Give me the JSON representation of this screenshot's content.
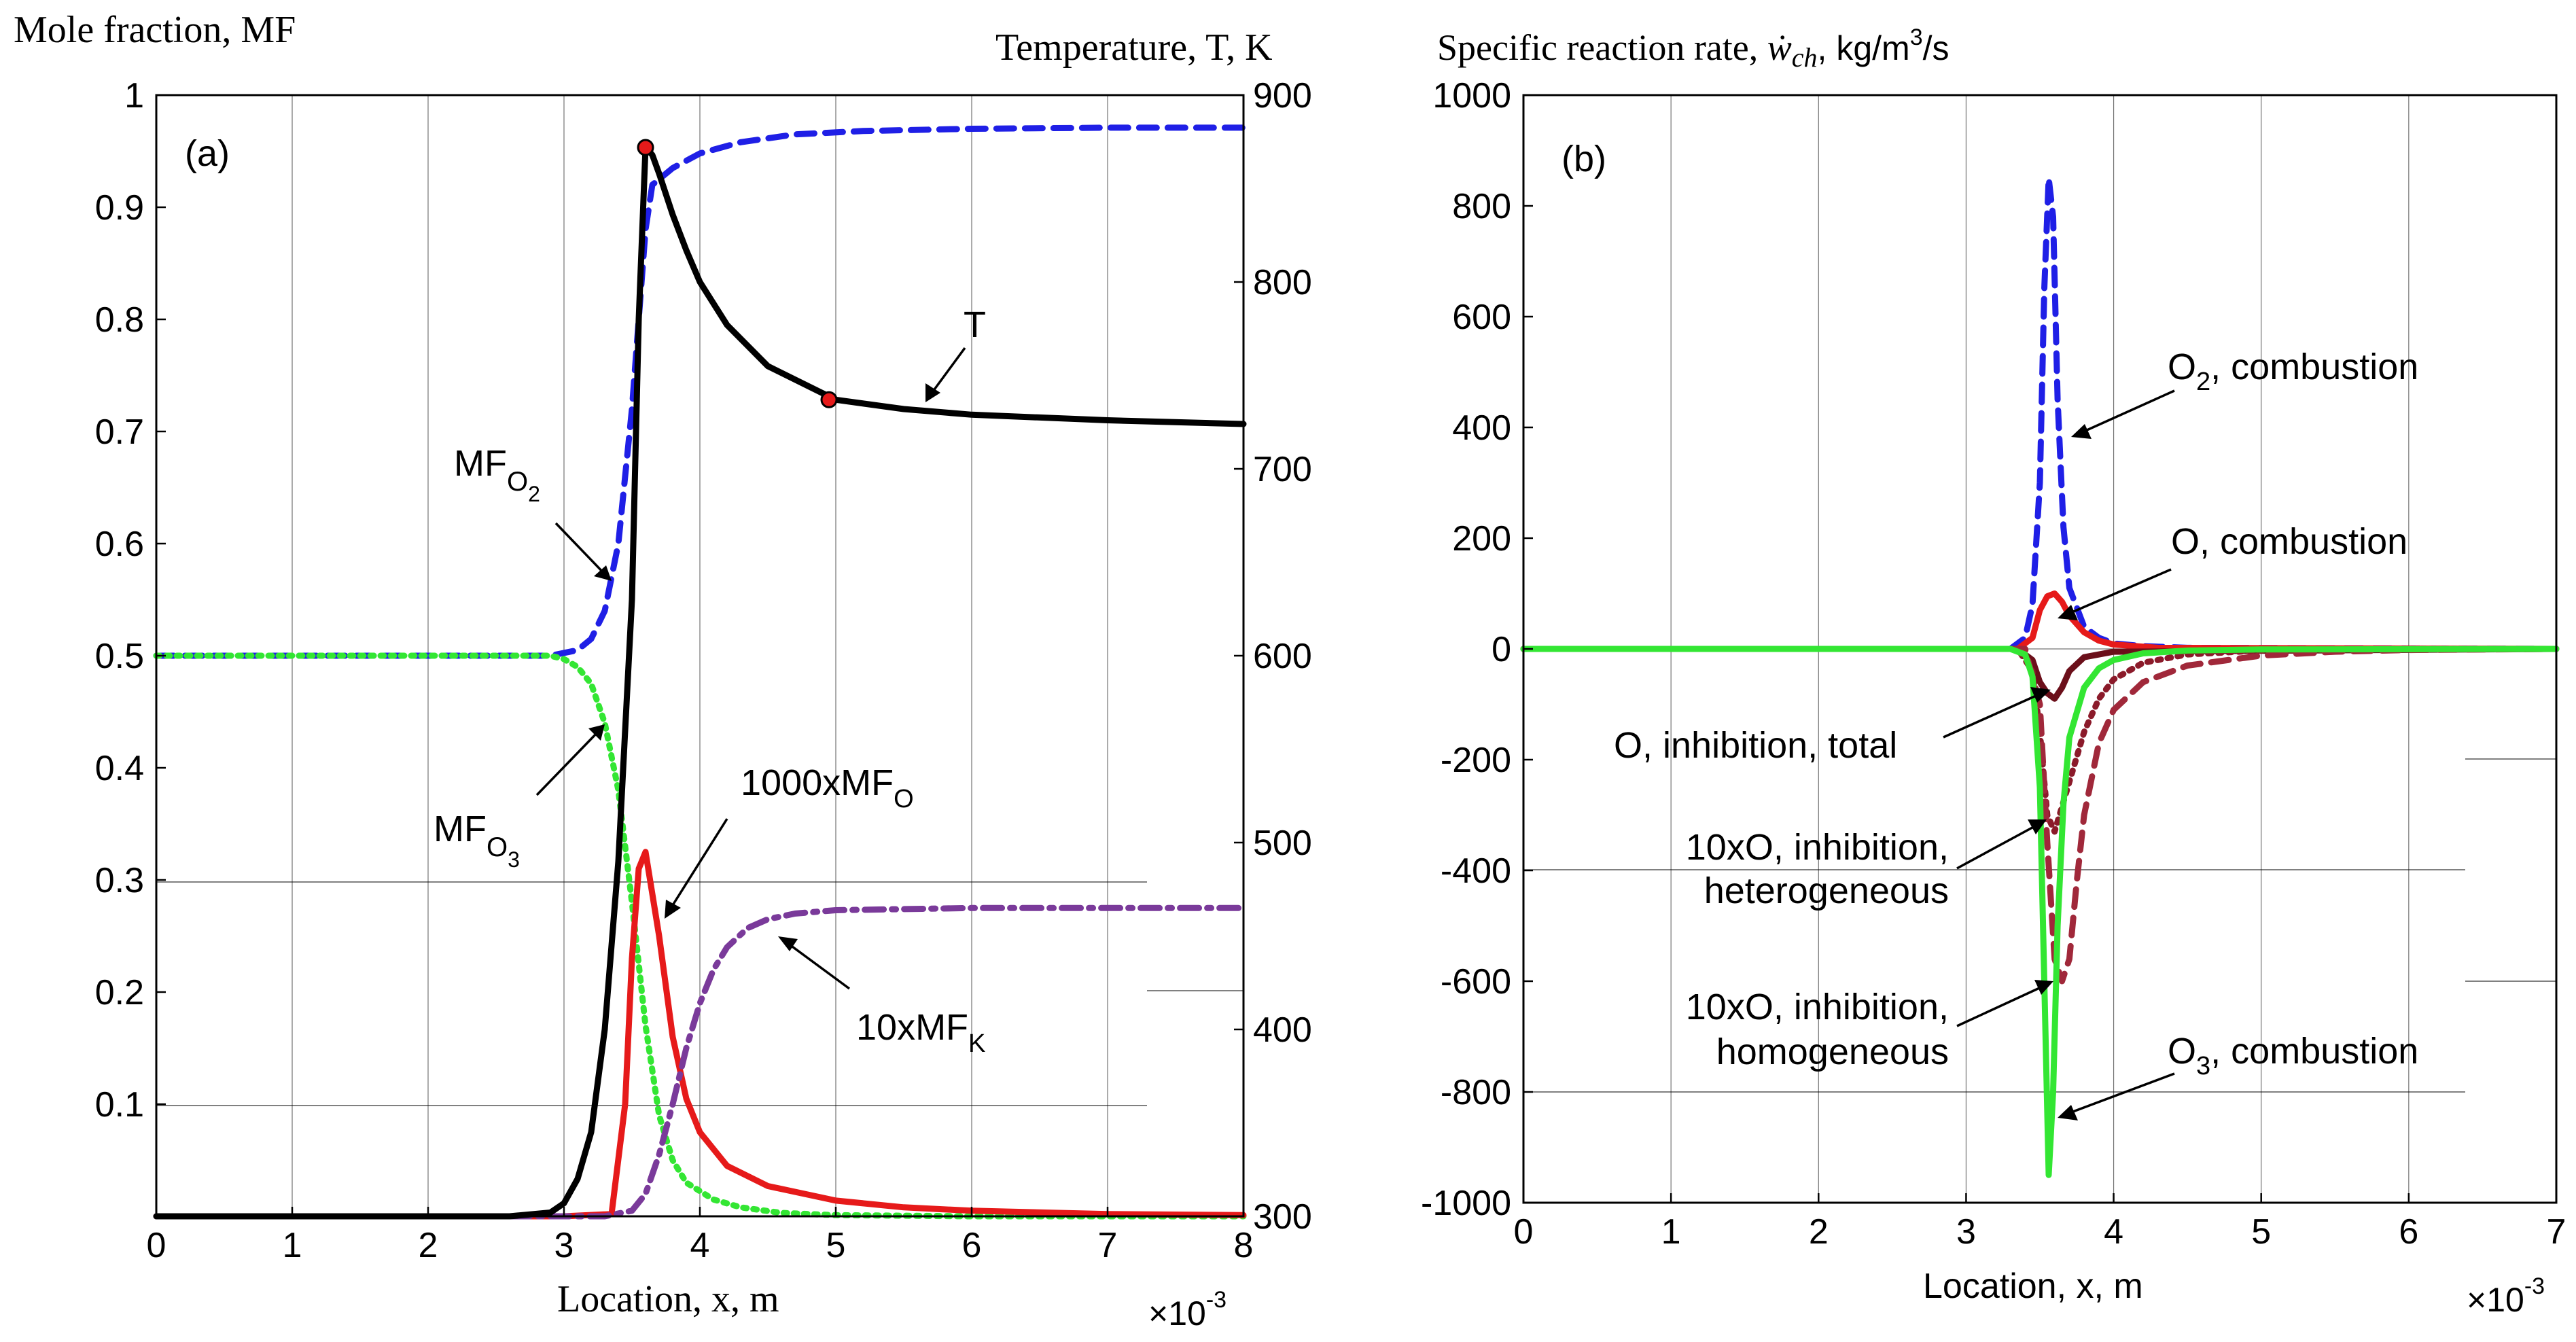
{
  "chart_data": [
    {
      "type": "line",
      "panel_label": "(a)",
      "ylabel_left": "Mole fraction, MF",
      "ylabel_right": "Temperature, T, K",
      "xlabel": "Location, x, m",
      "x_multiplier": "×10",
      "x_exponent": "-3",
      "xlim": [
        0,
        8
      ],
      "ylim_left": [
        0,
        1
      ],
      "ylim_right": [
        300,
        900
      ],
      "x_ticks": [
        0,
        1,
        2,
        3,
        4,
        5,
        6,
        7,
        8
      ],
      "x_tick_labels": [
        "0",
        "1",
        "2",
        "3",
        "4",
        "5",
        "6",
        "7",
        "8"
      ],
      "y_left_ticks": [
        0.1,
        0.2,
        0.3,
        0.4,
        0.5,
        0.6,
        0.7,
        0.8,
        0.9,
        1
      ],
      "y_left_tick_labels": [
        "0.1",
        "0.2",
        "0.3",
        "0.4",
        "0.5",
        "0.6",
        "0.7",
        "0.8",
        "0.9",
        "1"
      ],
      "y_right_ticks": [
        300,
        400,
        500,
        600,
        700,
        800,
        900
      ],
      "y_right_tick_labels": [
        "300",
        "400",
        "500",
        "600",
        "700",
        "800",
        "900"
      ],
      "grid": "vertical",
      "series": [
        {
          "name": "MF_O2",
          "axis": "left",
          "color": "#1f1fe6",
          "style": "dashed",
          "x": [
            0,
            2.5,
            2.9,
            3.1,
            3.2,
            3.3,
            3.4,
            3.5,
            3.6,
            3.65,
            3.7,
            3.8,
            4.0,
            4.3,
            4.7,
            5.2,
            6.0,
            7.0,
            8.0
          ],
          "y": [
            0.5,
            0.5,
            0.5,
            0.505,
            0.515,
            0.54,
            0.6,
            0.72,
            0.88,
            0.92,
            0.925,
            0.935,
            0.948,
            0.958,
            0.965,
            0.968,
            0.97,
            0.971,
            0.971
          ]
        },
        {
          "name": "MF_O3",
          "axis": "left",
          "color": "#33e633",
          "style": "dotted",
          "x": [
            0,
            2.5,
            2.9,
            3.0,
            3.1,
            3.2,
            3.3,
            3.4,
            3.5,
            3.6,
            3.7,
            3.8,
            3.9,
            4.1,
            4.3,
            4.6,
            5.0,
            6.0,
            8.0
          ],
          "y": [
            0.5,
            0.5,
            0.5,
            0.497,
            0.49,
            0.475,
            0.44,
            0.38,
            0.28,
            0.17,
            0.09,
            0.05,
            0.03,
            0.015,
            0.008,
            0.003,
            0.001,
            0.0,
            0.0
          ]
        },
        {
          "name": "1000xMF_O",
          "axis": "left",
          "color": "#e61a1a",
          "style": "solid",
          "x": [
            0,
            3.0,
            3.35,
            3.45,
            3.5,
            3.55,
            3.6,
            3.7,
            3.8,
            3.9,
            4.0,
            4.2,
            4.5,
            5.0,
            5.5,
            6.0,
            7.0,
            8.0
          ],
          "y": [
            0.0,
            0.0,
            0.002,
            0.1,
            0.23,
            0.31,
            0.325,
            0.25,
            0.16,
            0.105,
            0.075,
            0.045,
            0.027,
            0.014,
            0.008,
            0.005,
            0.002,
            0.001
          ]
        },
        {
          "name": "10xMF_K",
          "axis": "left",
          "color": "#7a3a9a",
          "style": "dashdot",
          "x": [
            0,
            3.3,
            3.5,
            3.6,
            3.7,
            3.8,
            3.9,
            4.0,
            4.1,
            4.2,
            4.35,
            4.5,
            4.7,
            5.0,
            5.5,
            6.0,
            7.0,
            8.0
          ],
          "y": [
            0.0,
            0.0,
            0.005,
            0.02,
            0.055,
            0.1,
            0.15,
            0.19,
            0.22,
            0.24,
            0.257,
            0.265,
            0.27,
            0.273,
            0.274,
            0.275,
            0.275,
            0.275
          ]
        },
        {
          "name": "T",
          "axis": "right",
          "color": "#000000",
          "style": "solid",
          "x": [
            0,
            2.6,
            2.9,
            3.0,
            3.1,
            3.2,
            3.3,
            3.4,
            3.5,
            3.55,
            3.6,
            3.65,
            3.7,
            3.8,
            3.9,
            4.0,
            4.2,
            4.5,
            5.0,
            5.5,
            6.0,
            7.0,
            8.0
          ],
          "y": [
            300,
            300,
            302,
            307,
            320,
            345,
            400,
            490,
            630,
            780,
            872,
            868,
            858,
            836,
            817,
            800,
            777,
            755,
            737,
            732,
            729,
            726,
            724
          ]
        }
      ],
      "markers": [
        {
          "series": "T",
          "x": 3.6,
          "y": 872
        },
        {
          "series": "T",
          "x": 4.95,
          "y": 737
        }
      ],
      "annotations": [
        "T",
        "MF",
        "O",
        "2",
        "MF",
        "O",
        "3",
        "1000xMF",
        "O",
        "10xMF",
        "K"
      ]
    },
    {
      "type": "line",
      "panel_label": "(b)",
      "title_prefix": "Specific reaction rate, ",
      "title_symbol": "ẇ",
      "title_sub": "ch",
      "title_unit": ", kg/m",
      "title_unit_sup": "3",
      "title_unit_end": "/s",
      "xlabel": "Location, x, m",
      "x_multiplier": "×10",
      "x_exponent": "-3",
      "xlim": [
        0,
        7
      ],
      "ylim": [
        -1000,
        1000
      ],
      "x_ticks": [
        0,
        1,
        2,
        3,
        4,
        5,
        6,
        7
      ],
      "x_tick_labels": [
        "0",
        "1",
        "2",
        "3",
        "4",
        "5",
        "6",
        "7"
      ],
      "y_ticks": [
        -1000,
        -800,
        -600,
        -400,
        -200,
        0,
        200,
        400,
        600,
        800,
        1000
      ],
      "y_tick_labels": [
        "-1000",
        "-800",
        "-600",
        "-400",
        "-200",
        "0",
        "200",
        "400",
        "600",
        "800",
        "1000"
      ],
      "grid": "vertical",
      "series": [
        {
          "name": "O2, combustion",
          "color": "#1f1fe6",
          "style": "dashed",
          "x": [
            0,
            3.3,
            3.4,
            3.45,
            3.5,
            3.53,
            3.56,
            3.59,
            3.62,
            3.66,
            3.7,
            3.8,
            3.9,
            4.0,
            4.2,
            4.5,
            7.0
          ],
          "y": [
            0,
            0,
            20,
            80,
            300,
            650,
            850,
            780,
            450,
            220,
            110,
            40,
            20,
            10,
            5,
            2,
            0
          ]
        },
        {
          "name": "O, combustion",
          "color": "#e61a1a",
          "style": "solid",
          "x": [
            0,
            3.35,
            3.45,
            3.5,
            3.55,
            3.6,
            3.65,
            3.7,
            3.8,
            3.9,
            4.0,
            4.3,
            7.0
          ],
          "y": [
            0,
            0,
            20,
            70,
            95,
            100,
            85,
            60,
            30,
            15,
            8,
            2,
            0
          ]
        },
        {
          "name": "O, inhibition, total",
          "color": "#6b0f1a",
          "style": "solid",
          "x": [
            0,
            3.35,
            3.45,
            3.5,
            3.55,
            3.6,
            3.65,
            3.7,
            3.8,
            4.0,
            7.0
          ],
          "y": [
            0,
            0,
            -20,
            -60,
            -80,
            -90,
            -70,
            -40,
            -15,
            -5,
            0
          ]
        },
        {
          "name": "10xO, inhibition, heterogeneous",
          "color": "#8b1a2a",
          "style": "dotted",
          "x": [
            0,
            3.35,
            3.45,
            3.5,
            3.55,
            3.6,
            3.7,
            3.8,
            3.9,
            4.0,
            4.2,
            4.5,
            5.0,
            6.0,
            7.0
          ],
          "y": [
            0,
            0,
            -40,
            -150,
            -300,
            -330,
            -240,
            -150,
            -90,
            -55,
            -25,
            -10,
            -3,
            0,
            0
          ]
        },
        {
          "name": "10xO, inhibition, homogeneous",
          "color": "#a0283a",
          "style": "dashed",
          "x": [
            0,
            3.4,
            3.5,
            3.55,
            3.6,
            3.65,
            3.7,
            3.75,
            3.8,
            3.9,
            4.0,
            4.2,
            4.5,
            5.0,
            5.5,
            6.0,
            7.0
          ],
          "y": [
            0,
            0,
            -100,
            -350,
            -560,
            -600,
            -560,
            -420,
            -300,
            -170,
            -110,
            -60,
            -30,
            -12,
            -5,
            -2,
            0
          ]
        },
        {
          "name": "O3, combustion",
          "color": "#33e633",
          "style": "solid",
          "x": [
            0,
            3.3,
            3.4,
            3.45,
            3.5,
            3.53,
            3.56,
            3.59,
            3.62,
            3.66,
            3.7,
            3.8,
            3.9,
            4.0,
            4.2,
            4.5,
            5.0,
            7.0
          ],
          "y": [
            0,
            0,
            -10,
            -50,
            -250,
            -600,
            -950,
            -800,
            -500,
            -280,
            -160,
            -70,
            -35,
            -20,
            -8,
            -3,
            -1,
            0
          ]
        }
      ],
      "annotations": [
        "O",
        "2",
        ", combustion",
        "O, combustion",
        "O, inhibition, total",
        "10xO, inhibition,",
        "heterogeneous",
        "10xO, inhibition,",
        "homogeneous",
        "O",
        "3",
        ", combustion"
      ]
    }
  ]
}
